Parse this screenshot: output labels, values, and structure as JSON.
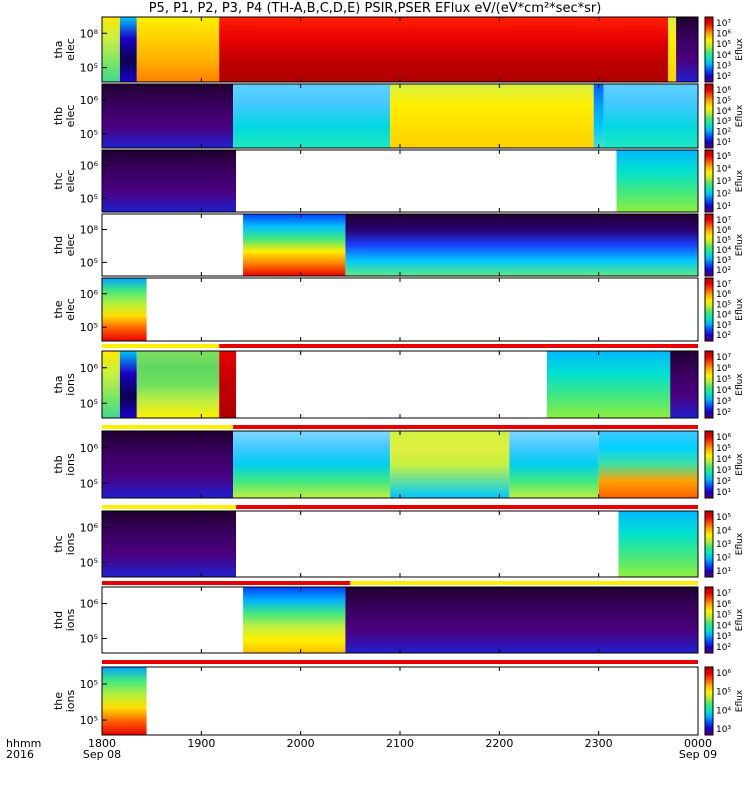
{
  "chart_data": {
    "type": "heatmap",
    "title": "P5, P1, P2, P3, P4 (TH-A,B,C,D,E) PSIR,PSER EFlux eV/(eV*cm²*sec*sr)",
    "colorbar_label": "Eflux",
    "x_corner_label": {
      "line1": "hhmm",
      "line2": "2016"
    },
    "x_ticks": [
      {
        "value": 0,
        "label": "1800",
        "sub": "Sep 08"
      },
      {
        "value": 100,
        "label": "1900",
        "sub": ""
      },
      {
        "value": 200,
        "label": "2000",
        "sub": ""
      },
      {
        "value": 300,
        "label": "2100",
        "sub": ""
      },
      {
        "value": 400,
        "label": "2200",
        "sub": ""
      },
      {
        "value": 500,
        "label": "2300",
        "sub": ""
      },
      {
        "value": 600,
        "label": "0000",
        "sub": "Sep 09"
      }
    ],
    "xlim_minutes": [
      0,
      600
    ],
    "y_scale": "log",
    "colormap": [
      "#5a0070",
      "#1a00c8",
      "#0050ff",
      "#00b4ff",
      "#00e8c0",
      "#40e870",
      "#b8ee30",
      "#fff000",
      "#ffb000",
      "#ff5000",
      "#e80000",
      "#b00000"
    ],
    "panels": [
      {
        "id": "tha-elec",
        "ylabel_1": "tha",
        "ylabel_2": "elec",
        "yticks": [
          "10⁸",
          "10⁵"
        ],
        "cbar_ticks": [
          "10⁷",
          "10⁶",
          "10⁵",
          "10⁴",
          "10³",
          "10²"
        ],
        "segments": [
          {
            "start": 0,
            "end": 18,
            "fill": "ylw_grn"
          },
          {
            "start": 18,
            "end": 35,
            "fill": "dark_blue"
          },
          {
            "start": 35,
            "end": 118,
            "fill": "ylw_org"
          },
          {
            "start": 118,
            "end": 570,
            "fill": "red_stripe"
          },
          {
            "start": 570,
            "end": 578,
            "fill": "yellow"
          },
          {
            "start": 578,
            "end": 600,
            "fill": "dark"
          }
        ]
      },
      {
        "id": "thb-elec",
        "ylabel_1": "thb",
        "ylabel_2": "elec",
        "yticks": [
          "10⁶",
          "10⁵"
        ],
        "cbar_ticks": [
          "10⁶",
          "10⁵",
          "10⁴",
          "10³",
          "10²",
          "10¹"
        ],
        "segments": [
          {
            "start": 0,
            "end": 132,
            "fill": "dark"
          },
          {
            "start": 132,
            "end": 290,
            "fill": "cyan"
          },
          {
            "start": 290,
            "end": 495,
            "fill": "yellow"
          },
          {
            "start": 495,
            "end": 505,
            "fill": "blue_cyan"
          },
          {
            "start": 505,
            "end": 600,
            "fill": "cyan"
          }
        ]
      },
      {
        "id": "thc-elec",
        "ylabel_1": "thc",
        "ylabel_2": "elec",
        "yticks": [
          "10⁶",
          "10⁵"
        ],
        "cbar_ticks": [
          "10⁵",
          "10⁴",
          "10³",
          "10²",
          "10¹"
        ],
        "segments": [
          {
            "start": 0,
            "end": 135,
            "fill": "dark"
          },
          {
            "start": 135,
            "end": 518,
            "fill": "white"
          },
          {
            "start": 518,
            "end": 600,
            "fill": "cyan_grn"
          }
        ]
      },
      {
        "id": "thd-elec",
        "ylabel_1": "thd",
        "ylabel_2": "elec",
        "yticks": [
          "10⁸",
          "10⁵"
        ],
        "cbar_ticks": [
          "10⁷",
          "10⁶",
          "10⁵",
          "10⁴",
          "10³",
          "10²"
        ],
        "segments": [
          {
            "start": 0,
            "end": 142,
            "fill": "white"
          },
          {
            "start": 142,
            "end": 245,
            "fill": "rainbow"
          },
          {
            "start": 245,
            "end": 600,
            "fill": "dark_cyan"
          }
        ]
      },
      {
        "id": "the-elec",
        "ylabel_1": "the",
        "ylabel_2": "elec",
        "yticks": [
          "10⁶",
          "10⁵"
        ],
        "cbar_ticks": [
          "10⁷",
          "10⁶",
          "10⁵",
          "10⁴",
          "10³",
          "10²"
        ],
        "segments": [
          {
            "start": 0,
            "end": 45,
            "fill": "the_mix"
          },
          {
            "start": 45,
            "end": 600,
            "fill": "white"
          }
        ]
      },
      {
        "id": "tha-ions",
        "ylabel_1": "tha",
        "ylabel_2": "ions",
        "yticks": [
          "10⁶",
          "10⁵"
        ],
        "cbar_ticks": [
          "10⁷",
          "10⁶",
          "10⁵",
          "10⁴",
          "10³",
          "10²"
        ],
        "segments": [
          {
            "start": 0,
            "end": 18,
            "fill": "ylw_grn"
          },
          {
            "start": 18,
            "end": 35,
            "fill": "dark_blue"
          },
          {
            "start": 35,
            "end": 118,
            "fill": "green_ylw"
          },
          {
            "start": 118,
            "end": 135,
            "fill": "red"
          },
          {
            "start": 135,
            "end": 448,
            "fill": "white"
          },
          {
            "start": 448,
            "end": 572,
            "fill": "cyan_grn"
          },
          {
            "start": 572,
            "end": 600,
            "fill": "dark"
          }
        ]
      },
      {
        "id": "thb-ions",
        "ylabel_1": "thb",
        "ylabel_2": "ions",
        "yticks": [
          "10⁶",
          "10⁵"
        ],
        "cbar_ticks": [
          "10⁶",
          "10⁵",
          "10⁴",
          "10³",
          "10²",
          "10¹"
        ],
        "segments": [
          {
            "start": 0,
            "end": 132,
            "fill": "dark"
          },
          {
            "start": 132,
            "end": 290,
            "fill": "cyan_ion"
          },
          {
            "start": 290,
            "end": 410,
            "fill": "yellow_ion"
          },
          {
            "start": 410,
            "end": 500,
            "fill": "cyan_ion"
          },
          {
            "start": 500,
            "end": 600,
            "fill": "cyan_org"
          }
        ]
      },
      {
        "id": "thc-ions",
        "ylabel_1": "thc",
        "ylabel_2": "ions",
        "yticks": [
          "10⁶",
          "10⁵"
        ],
        "cbar_ticks": [
          "10⁵",
          "10⁴",
          "10³",
          "10²",
          "10¹"
        ],
        "segments": [
          {
            "start": 0,
            "end": 135,
            "fill": "dark"
          },
          {
            "start": 135,
            "end": 520,
            "fill": "white"
          },
          {
            "start": 520,
            "end": 600,
            "fill": "cyan_grn"
          }
        ]
      },
      {
        "id": "thd-ions",
        "ylabel_1": "thd",
        "ylabel_2": "ions",
        "yticks": [
          "10⁶",
          "10⁵"
        ],
        "cbar_ticks": [
          "10⁷",
          "10⁶",
          "10⁵",
          "10⁴",
          "10³",
          "10²"
        ],
        "segments": [
          {
            "start": 0,
            "end": 142,
            "fill": "white"
          },
          {
            "start": 142,
            "end": 245,
            "fill": "rainbow_ion"
          },
          {
            "start": 245,
            "end": 600,
            "fill": "dark"
          }
        ]
      },
      {
        "id": "the-ions",
        "ylabel_1": "the",
        "ylabel_2": "ions",
        "yticks": [
          "10⁵",
          "10⁵"
        ],
        "cbar_ticks": [
          "10⁶",
          "10⁵",
          "10⁴",
          "10³"
        ],
        "segments": [
          {
            "start": 0,
            "end": 45,
            "fill": "the_mix"
          },
          {
            "start": 45,
            "end": 600,
            "fill": "white"
          }
        ]
      }
    ],
    "mode_bars": [
      {
        "after_panel": 4,
        "segments": [
          {
            "start": 0,
            "end": 118,
            "color": "#fff000"
          },
          {
            "start": 118,
            "end": 600,
            "color": "#e80000"
          }
        ]
      },
      {
        "after_panel": 5,
        "segments": [
          {
            "start": 0,
            "end": 132,
            "color": "#fff000"
          },
          {
            "start": 132,
            "end": 600,
            "color": "#e80000"
          }
        ]
      },
      {
        "after_panel": 6,
        "segments": [
          {
            "start": 0,
            "end": 135,
            "color": "#fff000"
          },
          {
            "start": 135,
            "end": 600,
            "color": "#e80000"
          }
        ]
      },
      {
        "after_panel": 7,
        "segments": [
          {
            "start": 0,
            "end": 250,
            "color": "#e80000"
          },
          {
            "start": 250,
            "end": 600,
            "color": "#fff000"
          }
        ]
      },
      {
        "after_panel": 8,
        "segments": [
          {
            "start": 0,
            "end": 600,
            "color": "#e80000"
          }
        ]
      }
    ]
  }
}
